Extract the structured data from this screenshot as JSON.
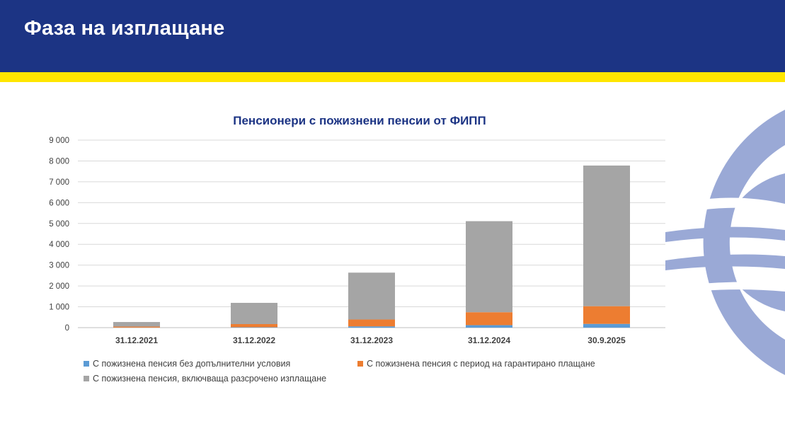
{
  "header": {
    "title": "Фаза на изплащане"
  },
  "colors": {
    "header_bg": "#1c3484",
    "stripe": "#ffe600",
    "logo": "#9aa9d6",
    "series_blue": "#5b9bd5",
    "series_orange": "#ed7d31",
    "series_gray": "#a5a5a5"
  },
  "chart_data": {
    "type": "bar",
    "stacked": true,
    "title": "Пенсионери с пожизнени пенсии от ФИПП",
    "categories": [
      "31.12.2021",
      "31.12.2022",
      "31.12.2023",
      "31.12.2024",
      "30.9.2025"
    ],
    "series": [
      {
        "name": "С пожизнена пенсия без допълнителни условия",
        "color": "#5b9bd5",
        "values": [
          5,
          20,
          60,
          120,
          180
        ]
      },
      {
        "name": "С пожизнена пенсия с период на гарантирано плащане",
        "color": "#ed7d31",
        "values": [
          45,
          150,
          330,
          620,
          850
        ]
      },
      {
        "name": "С пожизнена пенсия, включваща разсрочено изплащане",
        "color": "#a5a5a5",
        "values": [
          220,
          1020,
          2250,
          4370,
          6750
        ]
      }
    ],
    "ylim": [
      0,
      9000
    ],
    "yticks": [
      "0",
      "1 000",
      "2 000",
      "3 000",
      "4 000",
      "5 000",
      "6 000",
      "7 000",
      "8 000",
      "9 000"
    ],
    "grid": true,
    "legend_position": "bottom"
  }
}
